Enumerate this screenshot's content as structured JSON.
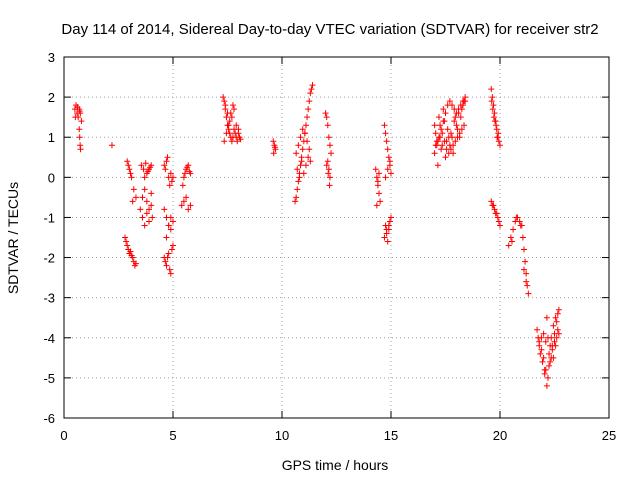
{
  "chart_data": {
    "type": "scatter",
    "title": "Day 114 of 2014, Sidereal Day-to-day VTEC variation (SDTVAR) for receiver str2",
    "xlabel": "GPS time / hours",
    "ylabel": "SDTVAR / TECUs",
    "xlim": [
      0,
      25
    ],
    "ylim": [
      -6,
      3
    ],
    "x_ticks": [
      0,
      5,
      10,
      15,
      20,
      25
    ],
    "y_ticks": [
      3,
      2,
      1,
      0,
      -1,
      -2,
      -3,
      -4,
      -5,
      -6
    ],
    "x_tick_labels": [
      "0",
      "5",
      "10",
      "15",
      "20",
      "25"
    ],
    "y_tick_labels": [
      "3",
      "2",
      "1",
      "0",
      "-1",
      "-2",
      "-3",
      "-4",
      "-5",
      "-6"
    ],
    "grid": true,
    "marker": "+",
    "color": "#ff0000",
    "series": [
      {
        "name": "SDTVAR",
        "x": [
          0.5,
          0.55,
          0.6,
          0.65,
          0.7,
          0.75,
          0.8,
          0.52,
          0.62,
          0.72,
          0.7,
          0.72,
          0.74,
          0.76,
          2.2,
          2.8,
          2.85,
          2.9,
          2.95,
          3.0,
          3.05,
          3.1,
          3.15,
          3.2,
          3.25,
          3.3,
          3.0,
          3.1,
          3.2,
          3.3,
          2.9,
          2.95,
          3.05,
          3.15,
          3.5,
          3.6,
          3.7,
          3.8,
          3.9,
          4.0,
          4.05,
          3.6,
          3.7,
          3.8,
          3.9,
          4.0,
          3.55,
          3.65,
          3.75,
          3.85,
          3.95,
          3.7,
          3.8,
          3.9,
          4.0,
          4.6,
          4.65,
          4.7,
          4.75,
          4.8,
          4.85,
          4.9,
          4.95,
          5.0,
          4.7,
          4.8,
          4.9,
          5.0,
          4.6,
          4.65,
          4.7,
          4.75,
          4.8,
          4.85,
          4.9,
          4.95,
          5.0,
          4.6,
          4.7,
          4.8,
          4.9,
          5.0,
          5.4,
          5.5,
          5.6,
          5.7,
          5.8,
          5.5,
          5.6,
          5.7,
          5.8,
          5.45,
          5.55,
          5.65,
          5.75,
          7.3,
          7.35,
          7.4,
          7.45,
          7.5,
          7.55,
          7.6,
          7.65,
          7.7,
          7.75,
          7.8,
          7.85,
          7.9,
          7.95,
          8.0,
          8.05,
          8.1,
          7.4,
          7.5,
          7.6,
          7.7,
          7.8,
          7.9,
          8.0,
          7.35,
          7.45,
          7.55,
          7.65,
          7.75,
          9.6,
          9.65,
          9.7,
          9.62,
          9.68,
          10.6,
          10.65,
          10.7,
          10.75,
          10.8,
          10.85,
          10.9,
          10.95,
          11.0,
          11.05,
          11.1,
          11.15,
          11.2,
          11.25,
          11.3,
          11.35,
          11.4,
          10.7,
          10.8,
          10.9,
          11.0,
          11.1,
          11.2,
          11.3,
          10.65,
          10.75,
          10.85,
          10.95,
          11.05,
          11.15,
          11.25,
          12.0,
          12.05,
          12.1,
          12.15,
          12.2,
          12.25,
          12.1,
          12.15,
          12.2,
          12.05,
          12.12,
          12.18,
          14.3,
          14.35,
          14.4,
          14.45,
          14.5,
          14.35,
          14.4,
          14.45,
          14.7,
          14.75,
          14.8,
          14.85,
          14.9,
          14.95,
          15.0,
          14.75,
          14.8,
          14.85,
          14.9,
          14.95,
          14.7,
          14.8,
          14.9,
          15.0,
          14.75,
          14.85,
          14.95,
          17.0,
          17.1,
          17.2,
          17.3,
          17.4,
          17.5,
          17.6,
          17.7,
          17.8,
          17.9,
          18.0,
          18.1,
          18.2,
          18.3,
          18.4,
          17.05,
          17.15,
          17.25,
          17.35,
          17.45,
          17.55,
          17.65,
          17.75,
          17.85,
          17.95,
          18.05,
          18.15,
          18.25,
          18.35,
          17.0,
          17.2,
          17.4,
          17.6,
          17.8,
          18.0,
          18.2,
          18.4,
          17.1,
          17.3,
          17.5,
          17.7,
          17.9,
          18.1,
          18.3,
          17.05,
          17.25,
          17.45,
          17.65,
          17.85,
          18.05,
          18.25,
          17.15,
          17.35,
          17.55,
          17.75,
          17.95,
          18.15,
          18.35,
          19.6,
          19.65,
          19.7,
          19.75,
          19.8,
          19.85,
          19.9,
          19.95,
          20.0,
          19.62,
          19.72,
          19.82,
          19.92,
          19.67,
          19.77,
          19.87,
          19.6,
          19.65,
          19.7,
          19.75,
          19.8,
          19.85,
          19.9,
          19.95,
          20.0,
          20.4,
          20.5,
          20.6,
          20.7,
          20.8,
          20.9,
          21.0,
          21.05,
          21.1,
          21.15,
          21.2,
          21.25,
          21.3,
          20.55,
          20.75,
          20.95,
          21.1,
          21.2,
          21.7,
          21.8,
          21.9,
          22.0,
          22.1,
          22.2,
          22.3,
          22.4,
          22.5,
          22.6,
          22.7,
          21.75,
          21.85,
          21.95,
          22.05,
          22.15,
          22.25,
          22.35,
          22.45,
          22.55,
          22.65,
          21.8,
          21.9,
          22.0,
          22.1,
          22.2,
          22.3,
          22.4,
          22.5,
          22.6,
          22.7,
          22.05,
          22.25,
          22.45,
          22.65,
          22.15,
          22.35,
          22.55
        ],
        "y": [
          1.7,
          1.8,
          1.6,
          1.5,
          1.7,
          1.6,
          1.4,
          1.5,
          1.75,
          1.65,
          1.2,
          1.0,
          0.8,
          0.7,
          0.8,
          -1.5,
          -1.6,
          -1.7,
          -1.8,
          -1.9,
          -1.85,
          -1.95,
          -2.0,
          -2.1,
          -2.2,
          -2.15,
          0.2,
          0.0,
          -0.3,
          -0.5,
          0.4,
          0.3,
          0.1,
          -0.6,
          -0.8,
          -1.0,
          -1.2,
          -0.9,
          -1.1,
          -0.7,
          -1.0,
          -0.5,
          -0.3,
          -0.6,
          -0.8,
          -0.4,
          0.3,
          0.2,
          0.35,
          0.15,
          0.25,
          0.0,
          0.1,
          0.2,
          0.3,
          -2.0,
          -2.1,
          -2.2,
          -2.0,
          -1.9,
          -2.3,
          -2.4,
          -1.8,
          -1.7,
          -1.5,
          -1.2,
          -1.0,
          -1.1,
          0.3,
          0.2,
          0.4,
          0.5,
          0.0,
          -0.2,
          0.1,
          -0.1,
          0.0,
          -0.8,
          -1.0,
          -1.2,
          -1.3,
          -1.1,
          -0.7,
          -0.6,
          -0.5,
          -0.8,
          -0.7,
          0.0,
          0.2,
          0.3,
          0.1,
          -0.2,
          0.1,
          0.25,
          0.15,
          2.0,
          1.9,
          1.7,
          1.5,
          1.3,
          1.2,
          1.1,
          1.0,
          0.9,
          1.0,
          1.2,
          1.1,
          1.0,
          0.9,
          1.1,
          1.0,
          0.95,
          1.8,
          1.6,
          1.4,
          1.5,
          1.7,
          1.3,
          1.2,
          0.9,
          1.1,
          1.3,
          1.6,
          1.8,
          0.9,
          0.8,
          0.7,
          0.6,
          0.75,
          -0.6,
          -0.5,
          -0.3,
          -0.1,
          0.1,
          0.3,
          0.5,
          0.7,
          0.9,
          1.1,
          1.3,
          1.5,
          1.7,
          1.9,
          2.1,
          2.2,
          2.3,
          0.2,
          0.0,
          0.4,
          0.1,
          0.3,
          0.5,
          0.4,
          0.6,
          0.8,
          1.0,
          1.2,
          1.1,
          0.9,
          0.7,
          1.6,
          1.5,
          1.3,
          1.0,
          0.8,
          0.6,
          0.4,
          0.2,
          0.0,
          0.3,
          0.1,
          -0.2,
          0.2,
          0.0,
          -0.2,
          -0.4,
          -0.6,
          -0.7,
          -0.1,
          0.1,
          1.3,
          1.1,
          0.9,
          0.7,
          0.5,
          0.3,
          0.1,
          -1.2,
          -1.4,
          -1.6,
          -1.3,
          -1.1,
          -1.5,
          -1.3,
          -1.2,
          -1.0,
          0.0,
          0.2,
          0.4,
          0.6,
          0.8,
          1.0,
          1.2,
          1.4,
          1.6,
          1.8,
          1.9,
          1.8,
          1.7,
          1.6,
          1.7,
          1.8,
          1.9,
          2.0,
          0.8,
          0.9,
          1.0,
          1.1,
          0.9,
          0.7,
          0.6,
          0.7,
          0.8,
          0.9,
          1.0,
          1.1,
          1.2,
          1.3,
          1.3,
          1.5,
          1.7,
          1.2,
          1.0,
          1.3,
          1.5,
          1.9,
          0.9,
          0.7,
          0.5,
          0.8,
          1.4,
          1.6,
          1.8,
          1.1,
          1.3,
          1.4,
          1.0,
          0.6,
          1.2,
          1.7,
          0.3,
          0.8,
          0.9,
          1.1,
          1.5,
          1.0,
          1.9,
          2.2,
          2.0,
          1.8,
          1.6,
          1.4,
          1.2,
          1.0,
          0.9,
          0.8,
          1.9,
          1.5,
          1.3,
          1.1,
          1.7,
          1.4,
          1.0,
          -0.6,
          -0.7,
          -0.7,
          -0.8,
          -0.9,
          -0.9,
          -1.0,
          -1.1,
          -1.2,
          -1.7,
          -1.5,
          -1.3,
          -1.1,
          -1.0,
          -1.1,
          -1.2,
          -1.5,
          -1.8,
          -2.1,
          -2.4,
          -2.7,
          -2.9,
          -1.6,
          -1.0,
          -1.2,
          -2.3,
          -2.6,
          -3.8,
          -4.2,
          -4.3,
          -4.5,
          -4.8,
          -5.0,
          -4.6,
          -4.2,
          -3.9,
          -3.6,
          -3.3,
          -4.0,
          -4.4,
          -4.6,
          -4.9,
          -5.2,
          -4.4,
          -4.0,
          -3.7,
          -3.5,
          -3.4,
          -4.1,
          -4.0,
          -3.9,
          -4.1,
          -4.0,
          -4.2,
          -4.3,
          -4.1,
          -4.0,
          -3.9,
          -4.8,
          -4.7,
          -4.5,
          -3.8,
          -3.5,
          -4.5,
          -4.2
        ]
      }
    ]
  }
}
